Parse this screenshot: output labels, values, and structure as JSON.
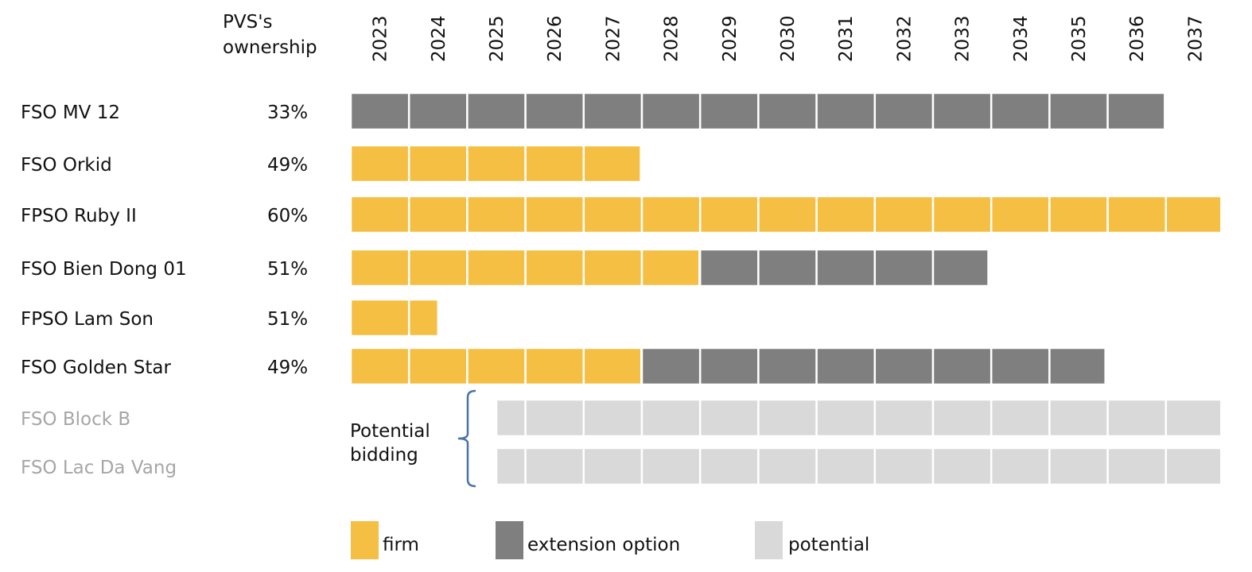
{
  "chart_data": {
    "type": "gantt",
    "ownership_header": [
      "PVS's",
      "ownership"
    ],
    "years": [
      "2023",
      "2024",
      "2025",
      "2026",
      "2027",
      "2028",
      "2029",
      "2030",
      "2031",
      "2032",
      "2033",
      "2034",
      "2035",
      "2036",
      "2037"
    ],
    "rows": [
      {
        "name": "FSO MV 12",
        "ownership": "33%",
        "muted": false,
        "segments": [
          {
            "kind": "extension",
            "start": 2023,
            "end": 2036.98
          }
        ]
      },
      {
        "name": "FSO Orkid",
        "ownership": "49%",
        "muted": false,
        "segments": [
          {
            "kind": "firm",
            "start": 2023,
            "end": 2027.98
          }
        ]
      },
      {
        "name": "FPSO Ruby II",
        "ownership": "60%",
        "muted": false,
        "segments": [
          {
            "kind": "firm",
            "start": 2023,
            "end": 2037.95
          }
        ]
      },
      {
        "name": "FSO Bien Dong 01",
        "ownership": "51%",
        "muted": false,
        "segments": [
          {
            "kind": "firm",
            "start": 2023,
            "end": 2028.99
          },
          {
            "kind": "extension",
            "start": 2028.99,
            "end": 2033.95
          }
        ]
      },
      {
        "name": "FPSO Lam Son",
        "ownership": "51%",
        "muted": false,
        "segments": [
          {
            "kind": "firm",
            "start": 2023,
            "end": 2024.5
          }
        ]
      },
      {
        "name": "FSO Golden Star",
        "ownership": "49%",
        "muted": false,
        "segments": [
          {
            "kind": "firm",
            "start": 2023,
            "end": 2027.99
          },
          {
            "kind": "extension",
            "start": 2027.99,
            "end": 2035.96
          }
        ]
      },
      {
        "name": "FSO Block B",
        "ownership": "",
        "muted": true,
        "segments": [
          {
            "kind": "potential",
            "start": 2025.5,
            "end": 2037.95
          }
        ]
      },
      {
        "name": "FSO Lac Da Vang",
        "ownership": "",
        "muted": true,
        "segments": [
          {
            "kind": "potential",
            "start": 2025.5,
            "end": 2037.95
          }
        ]
      }
    ],
    "annotation": [
      "Potential",
      "bidding"
    ],
    "legend": [
      {
        "kind": "firm",
        "label": "firm"
      },
      {
        "kind": "extension",
        "label": "extension option"
      },
      {
        "kind": "potential",
        "label": "potential"
      }
    ],
    "colors": {
      "firm": "#f4bf42",
      "extension": "#7f7f7f",
      "potential": "#d9d9d9",
      "label_muted": "#a6a6a6",
      "label": "#111111",
      "bracket": "#4a73a8"
    }
  }
}
